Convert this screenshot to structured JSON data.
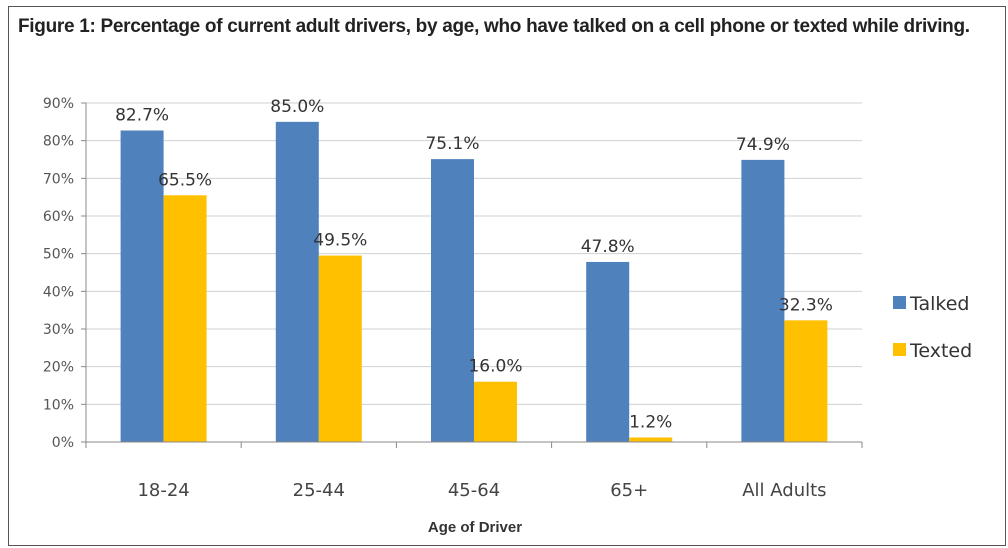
{
  "chart_data": {
    "type": "bar",
    "title": "Figure 1: Percentage of current adult drivers, by age, who have talked on a cell phone or texted while driving.",
    "xlabel": "Age of Driver",
    "ylabel": "",
    "categories": [
      "18-24",
      "25-44",
      "45-64",
      "65+",
      "All Adults"
    ],
    "series": [
      {
        "name": "Talked",
        "color": "#4F81BD",
        "values": [
          82.7,
          85.0,
          75.1,
          47.8,
          74.9
        ],
        "labels": [
          "82.7%",
          "85.0%",
          "75.1%",
          "47.8%",
          "74.9%"
        ]
      },
      {
        "name": "Texted",
        "color": "#FFC000",
        "values": [
          65.5,
          49.5,
          16.0,
          1.2,
          32.3
        ],
        "labels": [
          "65.5%",
          "49.5%",
          "16.0%",
          "1.2%",
          "32.3%"
        ]
      }
    ],
    "ylim": [
      0,
      90
    ],
    "yticks": [
      0,
      10,
      20,
      30,
      40,
      50,
      60,
      70,
      80,
      90
    ],
    "ytick_labels": [
      "0%",
      "10%",
      "20%",
      "30%",
      "40%",
      "50%",
      "60%",
      "70%",
      "80%",
      "90%"
    ],
    "grid": true,
    "legend_position": "right"
  }
}
